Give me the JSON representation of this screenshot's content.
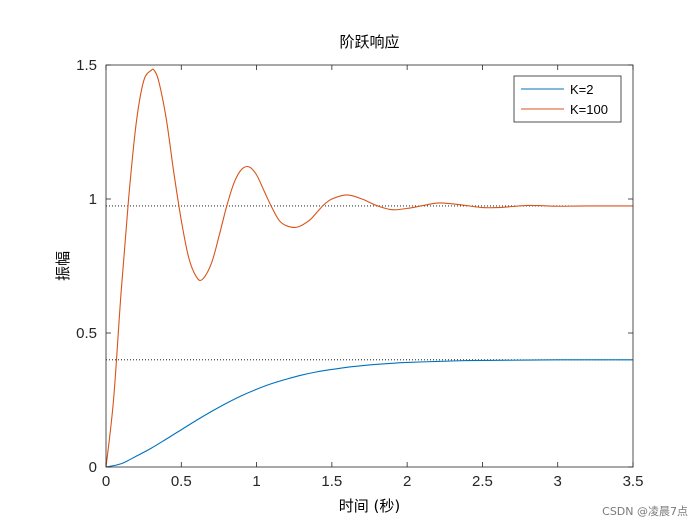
{
  "chart_data": {
    "type": "line",
    "title": "阶跃响应",
    "xlabel": "时间 (秒)",
    "ylabel": "振幅",
    "xlim": [
      0,
      3.5
    ],
    "ylim": [
      0,
      1.5
    ],
    "xticks": [
      0,
      0.5,
      1,
      1.5,
      2,
      2.5,
      3,
      3.5
    ],
    "xtick_labels": [
      "0",
      "0.5",
      "1",
      "1.5",
      "2",
      "2.5",
      "3",
      "3.5"
    ],
    "yticks": [
      0,
      0.5,
      1,
      1.5
    ],
    "ytick_labels": [
      "0",
      "0.5",
      "1",
      "1.5"
    ],
    "grid": false,
    "legend_position": "top-right",
    "series": [
      {
        "name": "K=2",
        "color": "#0072BD",
        "x": [
          0,
          0.1,
          0.2,
          0.3,
          0.4,
          0.5,
          0.6,
          0.7,
          0.8,
          0.9,
          1.0,
          1.1,
          1.2,
          1.3,
          1.4,
          1.5,
          1.6,
          1.7,
          1.8,
          1.9,
          2.0,
          2.2,
          2.4,
          2.6,
          2.8,
          3.0,
          3.2,
          3.5
        ],
        "y": [
          0,
          0.012,
          0.04,
          0.07,
          0.104,
          0.139,
          0.174,
          0.207,
          0.238,
          0.266,
          0.29,
          0.311,
          0.328,
          0.343,
          0.355,
          0.364,
          0.372,
          0.378,
          0.383,
          0.387,
          0.39,
          0.394,
          0.397,
          0.398,
          0.399,
          0.4,
          0.4,
          0.4
        ]
      },
      {
        "name": "K=100",
        "color": "#D95319",
        "x": [
          0,
          0.05,
          0.1,
          0.15,
          0.2,
          0.25,
          0.3,
          0.32,
          0.35,
          0.4,
          0.45,
          0.5,
          0.55,
          0.6,
          0.64,
          0.7,
          0.75,
          0.8,
          0.85,
          0.9,
          0.95,
          1.0,
          1.05,
          1.1,
          1.15,
          1.2,
          1.27,
          1.35,
          1.4,
          1.45,
          1.5,
          1.6,
          1.7,
          1.8,
          1.9,
          2.0,
          2.1,
          2.2,
          2.3,
          2.4,
          2.5,
          2.6,
          2.7,
          2.8,
          2.9,
          3.0,
          3.2,
          3.5
        ],
        "y": [
          0,
          0.25,
          0.65,
          1.0,
          1.28,
          1.44,
          1.48,
          1.48,
          1.44,
          1.3,
          1.1,
          0.92,
          0.78,
          0.71,
          0.7,
          0.76,
          0.86,
          0.97,
          1.06,
          1.11,
          1.12,
          1.09,
          1.03,
          0.97,
          0.92,
          0.9,
          0.895,
          0.92,
          0.95,
          0.98,
          1.0,
          1.015,
          1.0,
          0.975,
          0.96,
          0.965,
          0.975,
          0.985,
          0.982,
          0.975,
          0.968,
          0.968,
          0.972,
          0.976,
          0.975,
          0.973,
          0.974,
          0.974
        ]
      }
    ],
    "reference_lines": [
      {
        "y": 0.974,
        "style": "dotted",
        "color": "#000000"
      },
      {
        "y": 0.4,
        "style": "dotted",
        "color": "#000000"
      }
    ]
  },
  "watermark": "CSDN @凌晨7点"
}
